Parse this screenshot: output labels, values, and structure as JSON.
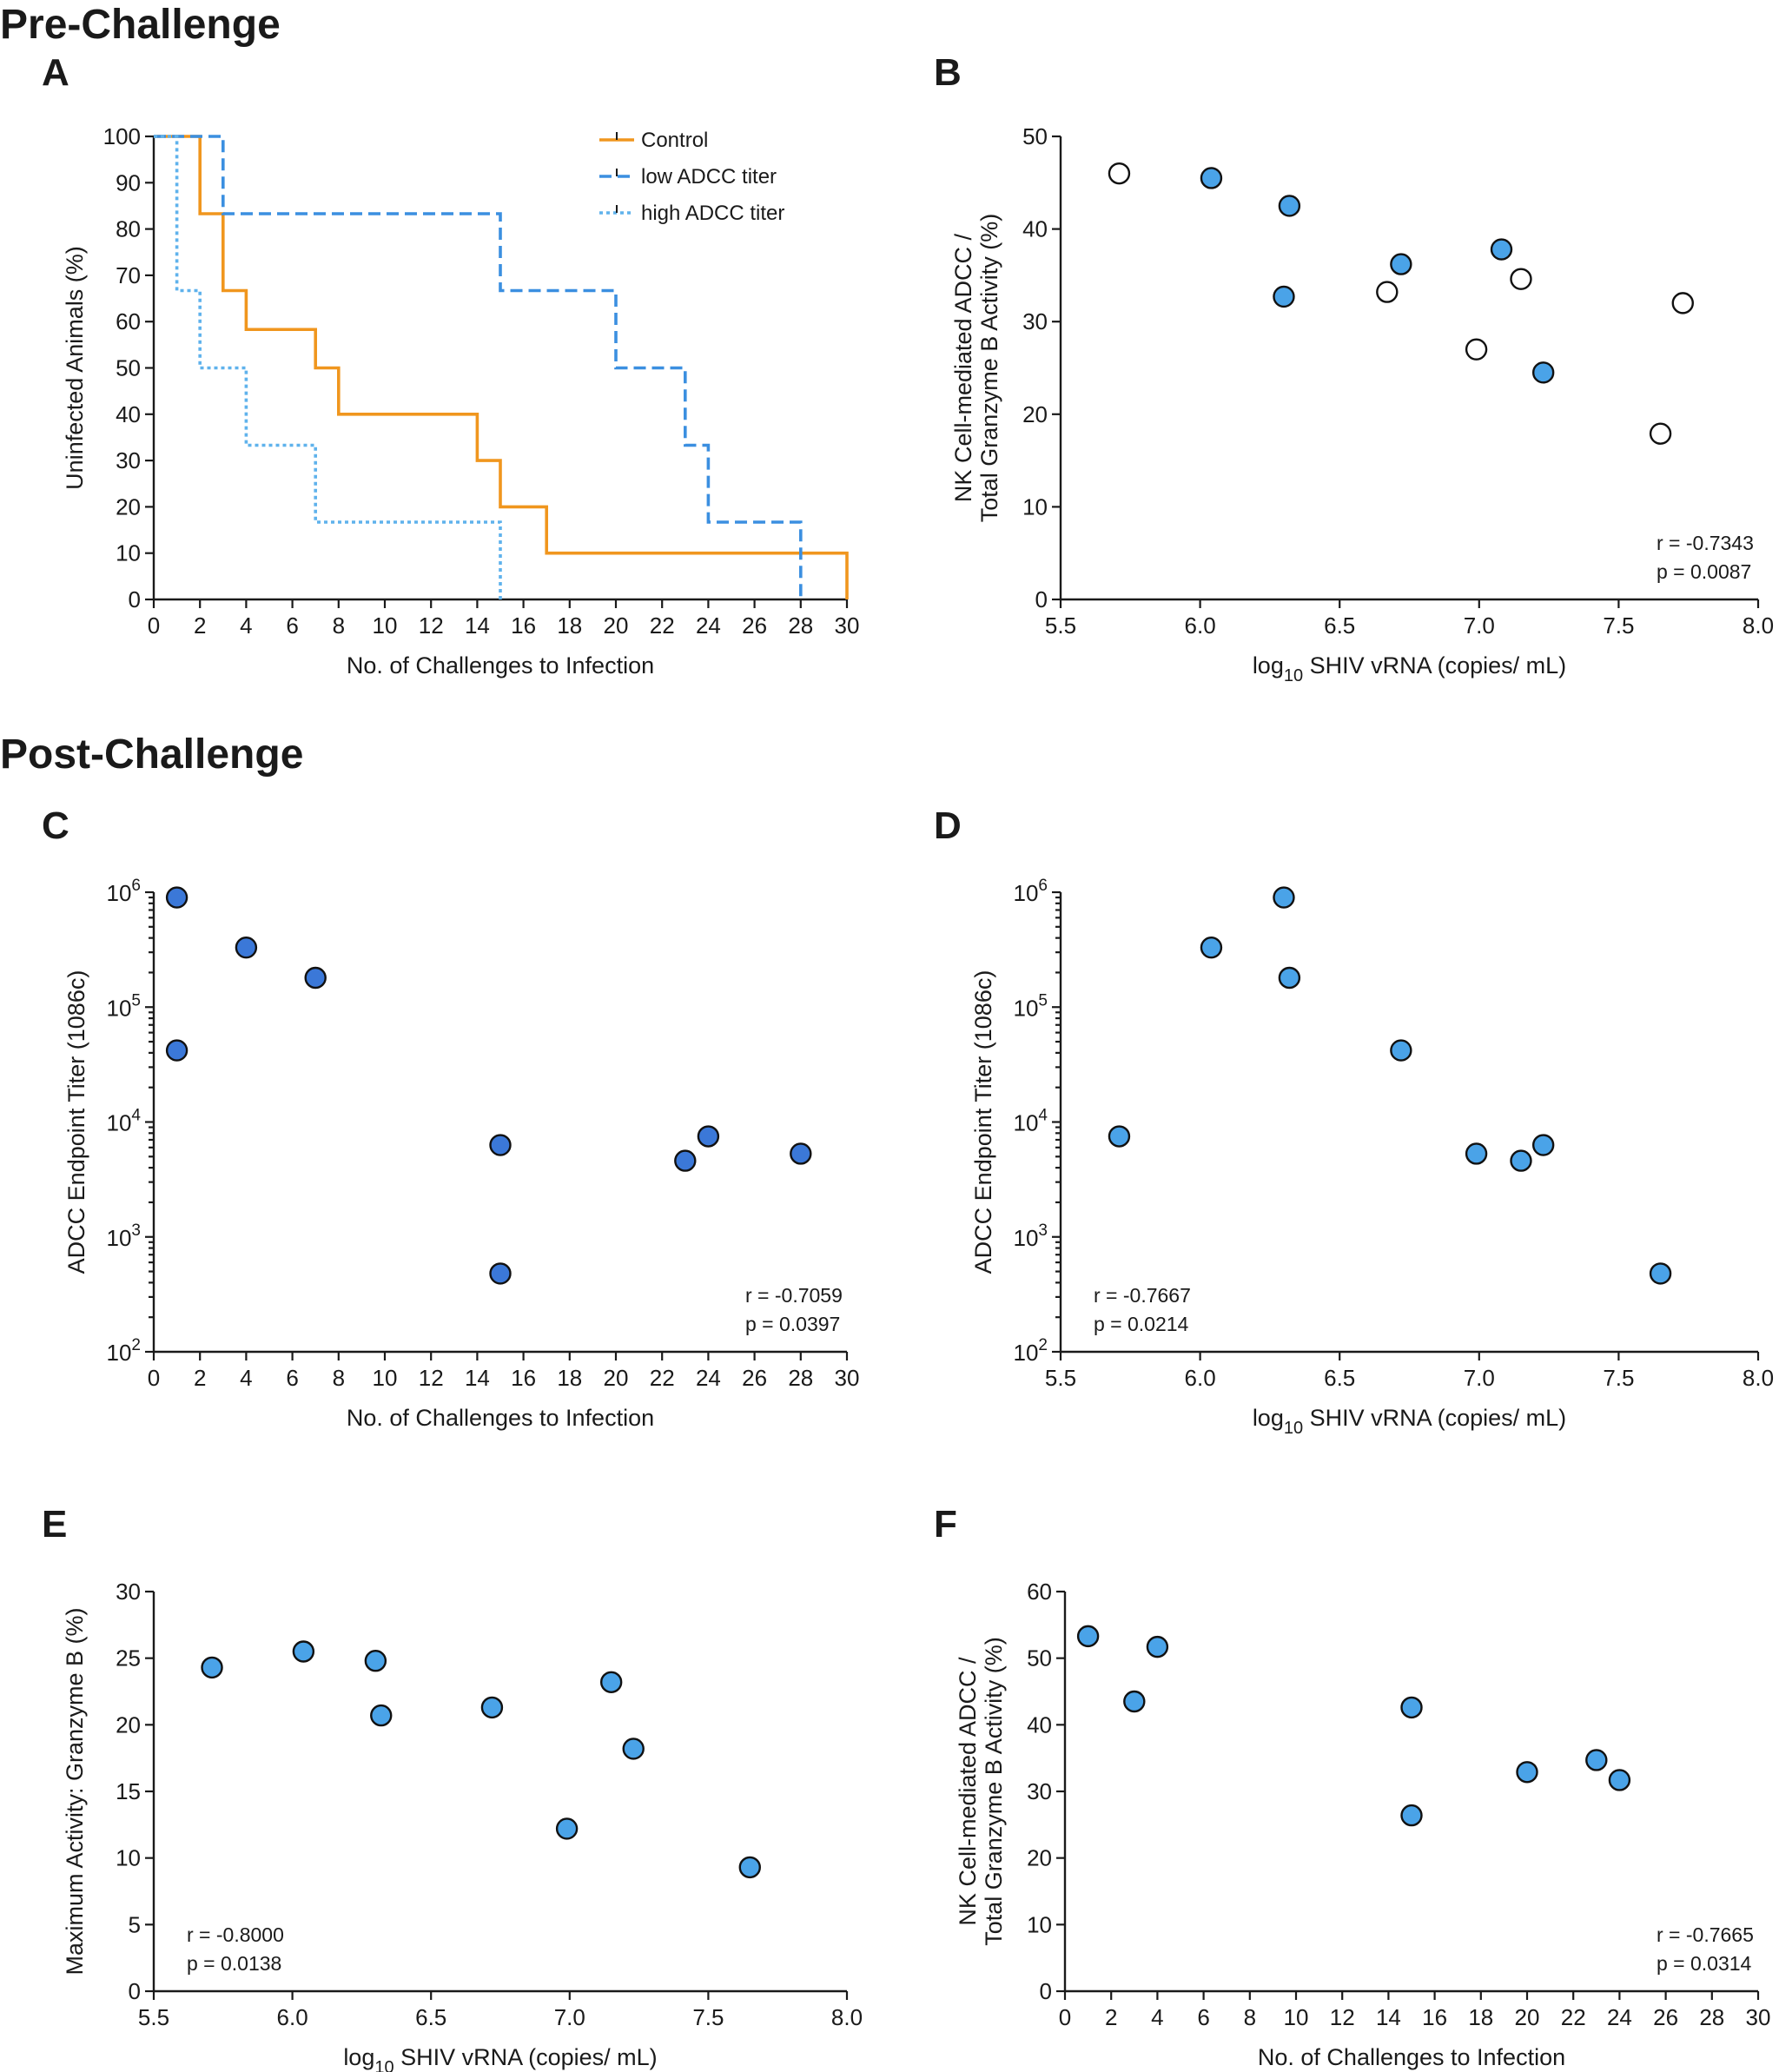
{
  "figure": {
    "section_pre": "Pre-Challenge",
    "section_post": "Post-Challenge"
  },
  "chart_data": [
    {
      "id": "A",
      "type": "line",
      "panel": "A",
      "style": "step",
      "xlabel": "No. of Challenges to Infection",
      "ylabel": "Uninfected Animals (%)",
      "xlim": [
        0,
        30
      ],
      "ylim": [
        0,
        100
      ],
      "xticks": [
        0,
        2,
        4,
        6,
        8,
        10,
        12,
        14,
        16,
        18,
        20,
        22,
        24,
        26,
        28,
        30
      ],
      "yticks": [
        0,
        10,
        20,
        30,
        40,
        50,
        60,
        70,
        80,
        90,
        100
      ],
      "legend_position": "top-right",
      "series": [
        {
          "name": "Control",
          "color": "#f0961e",
          "dash": "solid",
          "x": [
            0,
            2,
            3,
            4,
            7,
            8,
            14,
            15,
            17,
            30
          ],
          "y": [
            100,
            83.3,
            66.7,
            58.3,
            50,
            40,
            30,
            20,
            10,
            0
          ]
        },
        {
          "name": "low ADCC titer",
          "color": "#3b8fe0",
          "dash": "dashed",
          "x": [
            0,
            3,
            15,
            20,
            23,
            24,
            28
          ],
          "y": [
            100,
            83.3,
            66.7,
            50,
            33.3,
            16.7,
            0
          ]
        },
        {
          "name": "high ADCC titer",
          "color": "#5fb2ec",
          "dash": "dotted",
          "x": [
            0,
            1,
            2,
            4,
            7,
            15
          ],
          "y": [
            100,
            66.7,
            50,
            33.3,
            16.7,
            0
          ]
        }
      ]
    },
    {
      "id": "B",
      "type": "scatter",
      "panel": "B",
      "xlabel_pre": "log",
      "xlabel_sub": "10",
      "xlabel_post": " SHIV vRNA (copies/ mL)",
      "ylabel_lines": [
        "NK Cell-mediated ADCC /",
        "Total Granzyme B Activity (%)"
      ],
      "xlim": [
        5.5,
        8.0
      ],
      "ylim": [
        0,
        50
      ],
      "xticks": [
        5.5,
        6.0,
        6.5,
        7.0,
        7.5,
        8.0
      ],
      "xtick_labels": [
        "5.5",
        "6.0",
        "6.5",
        "7.0",
        "7.5",
        "8.0"
      ],
      "yticks": [
        0,
        10,
        20,
        30,
        40,
        50
      ],
      "stats": [
        "r = -0.7343",
        "p = 0.0087"
      ],
      "stats_position": "bottom-right",
      "series": [
        {
          "name": "filled",
          "fill": "#4aa3e8",
          "x": [
            6.04,
            6.32,
            6.3,
            6.72,
            7.08,
            7.23
          ],
          "y": [
            45.5,
            42.5,
            32.7,
            36.2,
            37.8,
            24.5
          ]
        },
        {
          "name": "open",
          "fill": "#ffffff",
          "x": [
            5.71,
            6.67,
            6.99,
            7.15,
            7.65,
            7.73
          ],
          "y": [
            46.0,
            33.2,
            27.0,
            34.6,
            17.9,
            32.0
          ]
        }
      ]
    },
    {
      "id": "C",
      "type": "scatter",
      "panel": "C",
      "yscale": "log",
      "xlabel": "No. of Challenges to Infection",
      "ylabel": "ADCC Endpoint Titer (1086c)",
      "xlim": [
        0,
        30
      ],
      "ylim_exp": [
        2,
        6
      ],
      "xticks": [
        0,
        2,
        4,
        6,
        8,
        10,
        12,
        14,
        16,
        18,
        20,
        22,
        24,
        26,
        28,
        30
      ],
      "yticks_exp": [
        2,
        3,
        4,
        5,
        6
      ],
      "ytick_base": "10",
      "ytick_exps": [
        "2",
        "3",
        "4",
        "5",
        "6"
      ],
      "stats": [
        "r = -0.7059",
        "p = 0.0397"
      ],
      "stats_position": "bottom-right",
      "series": [
        {
          "name": "points",
          "fill": "#3b78d8",
          "x": [
            1,
            1,
            4,
            7,
            15,
            15,
            23,
            24,
            28
          ],
          "y": [
            900000,
            42000,
            330000,
            180000,
            6300,
            480,
            4600,
            7500,
            5300
          ]
        }
      ]
    },
    {
      "id": "D",
      "type": "scatter",
      "panel": "D",
      "yscale": "log",
      "xlabel_pre": "log",
      "xlabel_sub": "10",
      "xlabel_post": " SHIV vRNA (copies/ mL)",
      "ylabel": "ADCC Endpoint Titer (1086c)",
      "xlim": [
        5.5,
        8.0
      ],
      "ylim_exp": [
        2,
        6
      ],
      "xticks": [
        5.5,
        6.0,
        6.5,
        7.0,
        7.5,
        8.0
      ],
      "xtick_labels": [
        "5.5",
        "6.0",
        "6.5",
        "7.0",
        "7.5",
        "8.0"
      ],
      "yticks_exp": [
        2,
        3,
        4,
        5,
        6
      ],
      "ytick_base": "10",
      "ytick_exps": [
        "2",
        "3",
        "4",
        "5",
        "6"
      ],
      "stats": [
        "r = -0.7667",
        "p = 0.0214"
      ],
      "stats_position": "bottom-left",
      "series": [
        {
          "name": "points",
          "fill": "#4aa3e8",
          "x": [
            5.71,
            6.04,
            6.3,
            6.32,
            6.72,
            6.99,
            7.15,
            7.23,
            7.65
          ],
          "y": [
            7500,
            330000,
            900000,
            180000,
            42000,
            5300,
            4600,
            6300,
            480
          ]
        }
      ]
    },
    {
      "id": "E",
      "type": "scatter",
      "panel": "E",
      "xlabel_pre": "log",
      "xlabel_sub": "10",
      "xlabel_post": " SHIV vRNA (copies/ mL)",
      "ylabel": "Maximum Activity: Granzyme B (%)",
      "xlim": [
        5.5,
        8.0
      ],
      "ylim": [
        0,
        30
      ],
      "xticks": [
        5.5,
        6.0,
        6.5,
        7.0,
        7.5,
        8.0
      ],
      "xtick_labels": [
        "5.5",
        "6.0",
        "6.5",
        "7.0",
        "7.5",
        "8.0"
      ],
      "yticks": [
        0,
        5,
        10,
        15,
        20,
        25,
        30
      ],
      "stats": [
        "r = -0.8000",
        "p = 0.0138"
      ],
      "stats_position": "bottom-left",
      "series": [
        {
          "name": "points",
          "fill": "#4aa3e8",
          "x": [
            5.71,
            6.04,
            6.3,
            6.32,
            6.72,
            6.99,
            7.15,
            7.23,
            7.65
          ],
          "y": [
            24.3,
            25.5,
            24.8,
            20.7,
            21.3,
            12.2,
            23.2,
            18.2,
            9.3
          ]
        }
      ]
    },
    {
      "id": "F",
      "type": "scatter",
      "panel": "F",
      "xlabel": "No. of Challenges to Infection",
      "ylabel_lines": [
        "NK Cell-mediated ADCC /",
        "Total Granzyme B Activity (%)"
      ],
      "xlim": [
        0,
        30
      ],
      "ylim": [
        0,
        60
      ],
      "xticks": [
        0,
        2,
        4,
        6,
        8,
        10,
        12,
        14,
        16,
        18,
        20,
        22,
        24,
        26,
        28,
        30
      ],
      "yticks": [
        0,
        10,
        20,
        30,
        40,
        50,
        60
      ],
      "stats": [
        "r = -0.7665",
        "p = 0.0314"
      ],
      "stats_position": "bottom-right",
      "series": [
        {
          "name": "points",
          "fill": "#4aa3e8",
          "x": [
            1,
            3,
            4,
            15,
            15,
            20,
            23,
            24
          ],
          "y": [
            53.3,
            43.5,
            51.7,
            42.6,
            26.4,
            32.9,
            34.7,
            31.7
          ]
        }
      ]
    }
  ]
}
